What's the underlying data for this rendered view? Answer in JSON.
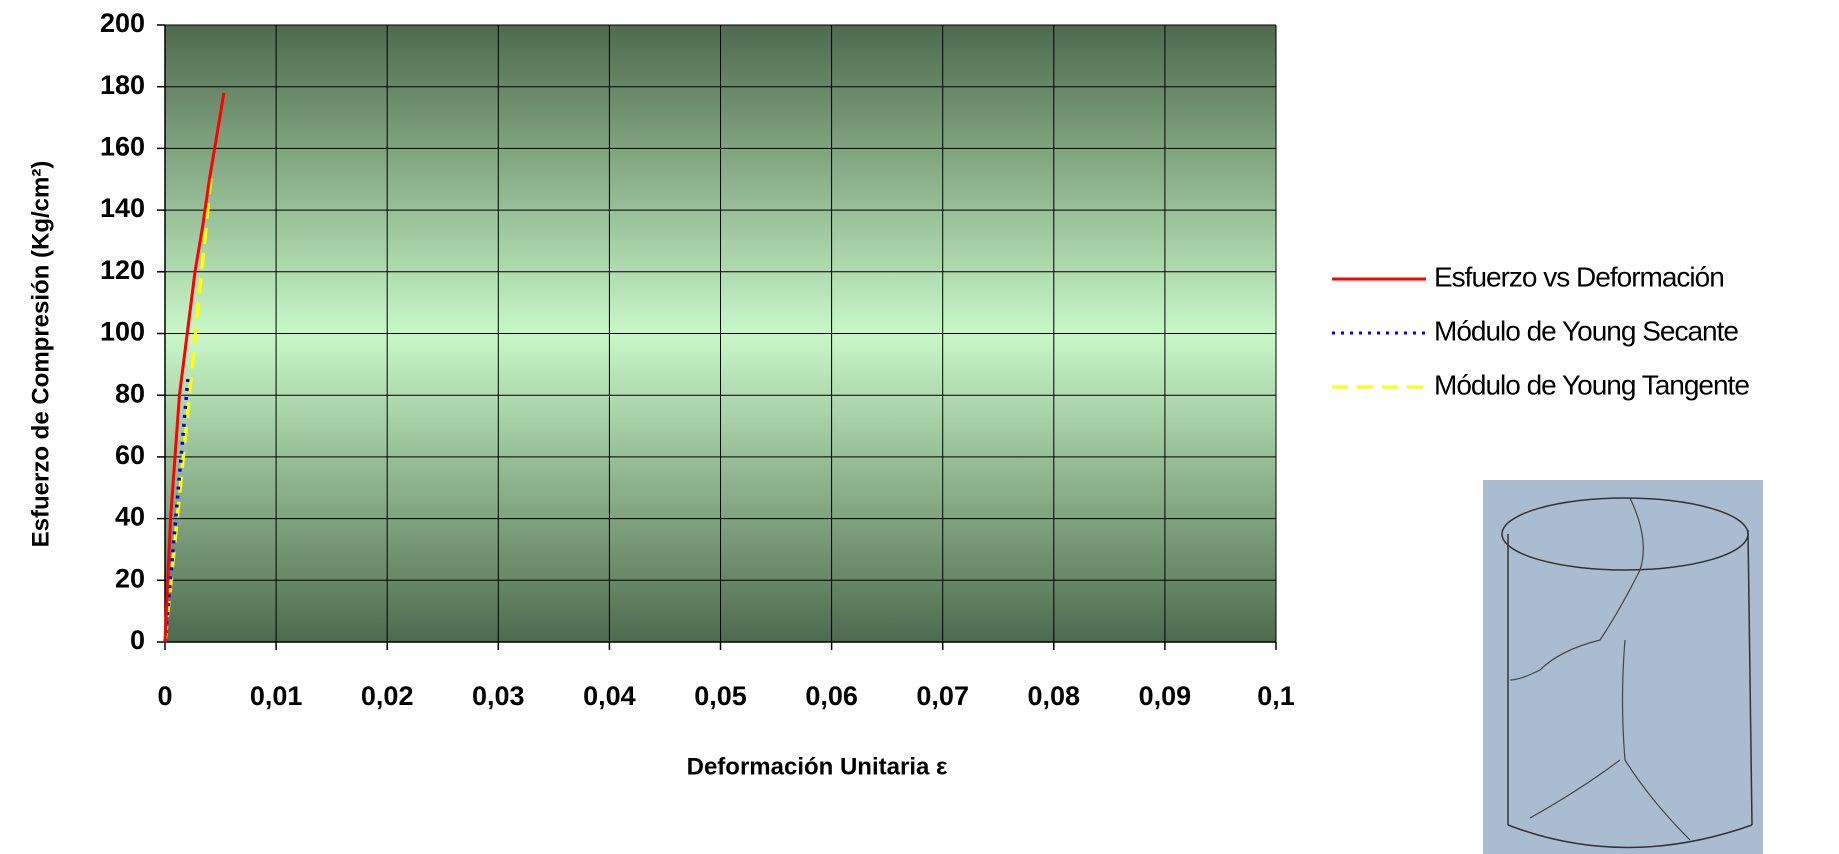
{
  "chart_data": {
    "type": "line",
    "x_label": "Deformación Unitaria ε",
    "y_label": "Esfuerzo de Compresión (Kg/cm²)",
    "xlim": [
      0,
      0.1
    ],
    "xticks": [
      0,
      {
        "value": 0.01,
        "label": "0,01"
      },
      {
        "value": 0.02,
        "label": "0,02"
      },
      {
        "value": 0.03,
        "label": "0,03"
      },
      {
        "value": 0.04,
        "label": "0,04"
      },
      {
        "value": 0.05,
        "label": "0,05"
      },
      {
        "value": 0.06,
        "label": "0,06"
      },
      {
        "value": 0.07,
        "label": "0,07"
      },
      {
        "value": 0.08,
        "label": "0,08"
      },
      {
        "value": 0.09,
        "label": "0,09"
      },
      {
        "value": 0.1,
        "label": "0,1"
      }
    ],
    "ylim": [
      0,
      200
    ],
    "yticks": [
      0,
      20,
      40,
      60,
      80,
      100,
      120,
      140,
      160,
      180,
      200
    ],
    "grid": true,
    "legend": "right",
    "series": [
      {
        "name": "Esfuerzo vs Deformación",
        "color": "#ff0000",
        "style": "solid",
        "x": [
          0,
          0.0005,
          0.0013,
          0.002,
          0.0027,
          0.0034,
          0.004,
          0.0047,
          0.0053
        ],
        "values": [
          0,
          40,
          80,
          100,
          120,
          135,
          150,
          165,
          178
        ]
      },
      {
        "name": "Módulo de Young Secante",
        "color": "#0000ff",
        "style": "dotted",
        "x": [
          0,
          0.0021
        ],
        "values": [
          0,
          87
        ]
      },
      {
        "name": "Módulo de Young Tangente",
        "color": "#ffff00",
        "style": "dashed",
        "x": [
          0,
          0.0042
        ],
        "values": [
          0,
          153
        ]
      }
    ]
  }
}
